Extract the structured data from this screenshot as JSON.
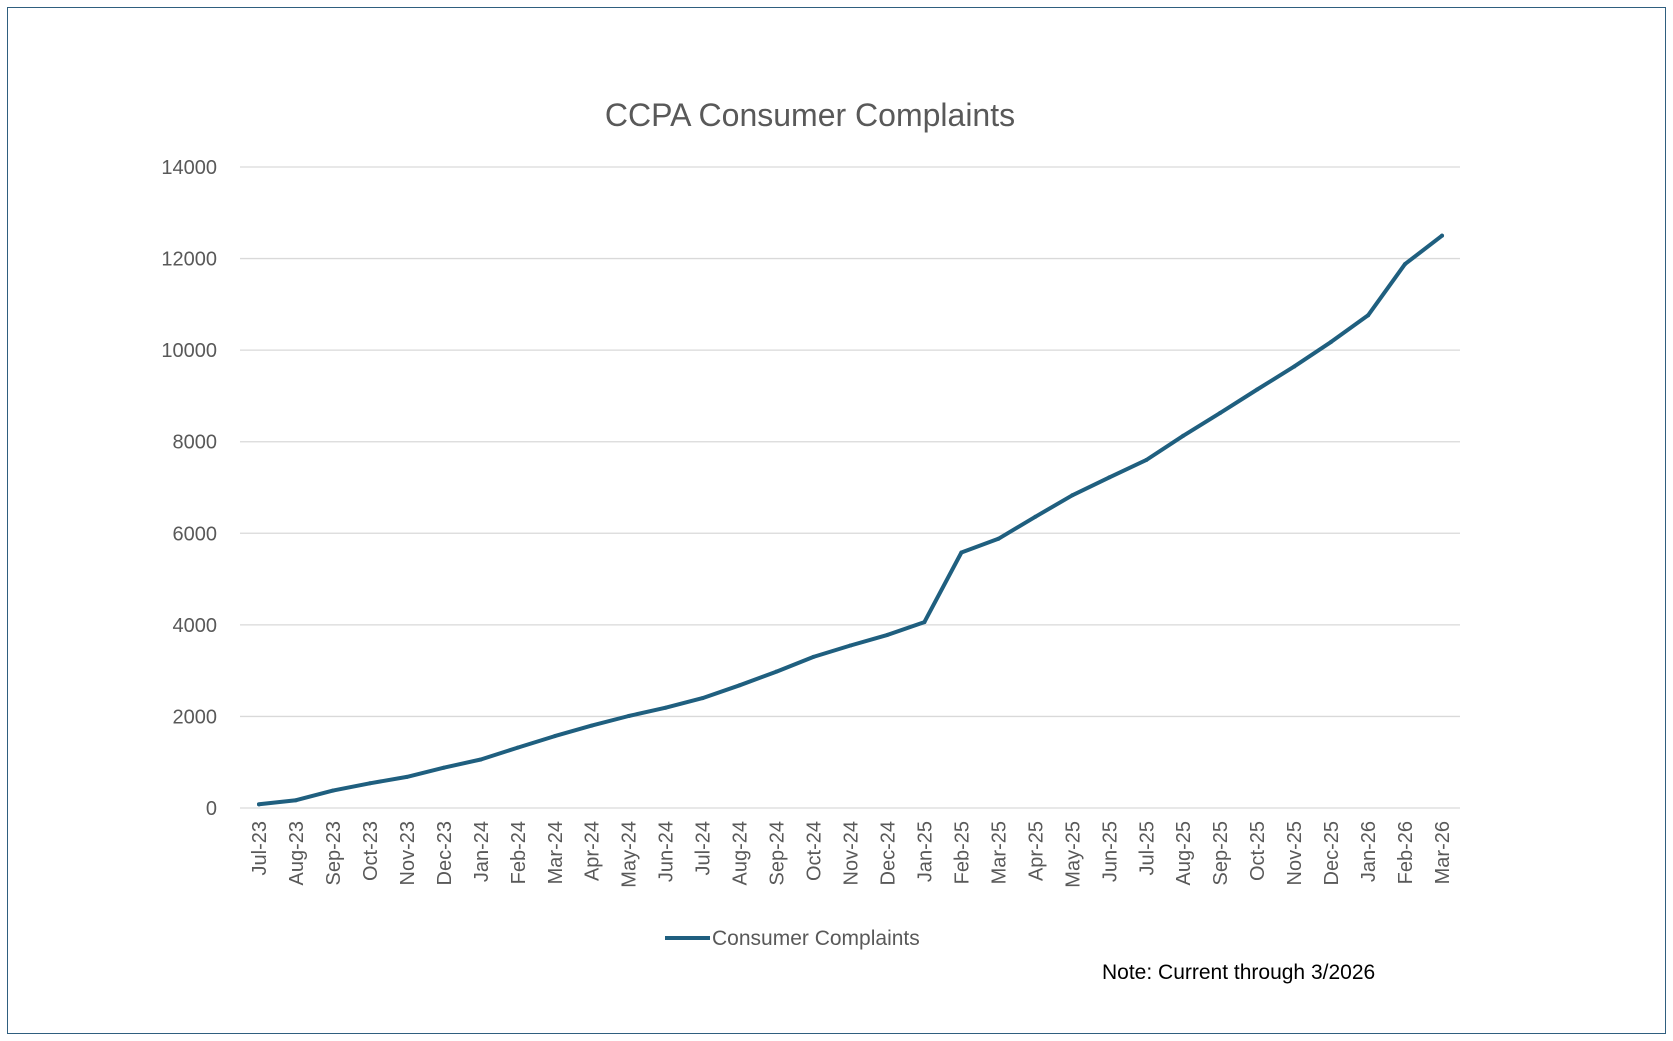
{
  "chart_data": {
    "type": "line",
    "title": "CCPA Consumer Complaints",
    "xlabel": "",
    "ylabel": "",
    "ylim": [
      0,
      14000
    ],
    "yticks": [
      "0",
      "2000",
      "4000",
      "6000",
      "8000",
      "10000",
      "12000",
      "14000"
    ],
    "grid": true,
    "legend_position": "bottom",
    "categories": [
      "Jul-23",
      "Aug-23",
      "Sep-23",
      "Oct-23",
      "Nov-23",
      "Dec-23",
      "Jan-24",
      "Feb-24",
      "Mar-24",
      "Apr-24",
      "May-24",
      "Jun-24",
      "Jul-24",
      "Aug-24",
      "Sep-24",
      "Oct-24",
      "Nov-24",
      "Dec-24",
      "Jan-25",
      "Feb-25",
      "Mar-25",
      "Apr-25",
      "May-25",
      "Jun-25",
      "Jul-25",
      "Aug-25",
      "Sep-25",
      "Oct-25",
      "Nov-25",
      "Dec-25",
      "Jan-26",
      "Feb-26",
      "Mar-26"
    ],
    "series": [
      {
        "name": "Consumer Complaints",
        "color": "#1f5f7f",
        "values": [
          80,
          170,
          380,
          540,
          680,
          880,
          1060,
          1320,
          1570,
          1800,
          2010,
          2190,
          2400,
          2680,
          2980,
          3300,
          3550,
          3780,
          4060,
          5580,
          5880,
          6360,
          6830,
          7220,
          7600,
          8130,
          8630,
          9140,
          9640,
          10180,
          10760,
          11880,
          12500
        ]
      }
    ]
  },
  "note": "Note: Current through 3/2026",
  "colors": {
    "line": "#1f5f7f",
    "grid": "#d9d9d9",
    "text": "#595959",
    "border": "#2f5f7f"
  }
}
